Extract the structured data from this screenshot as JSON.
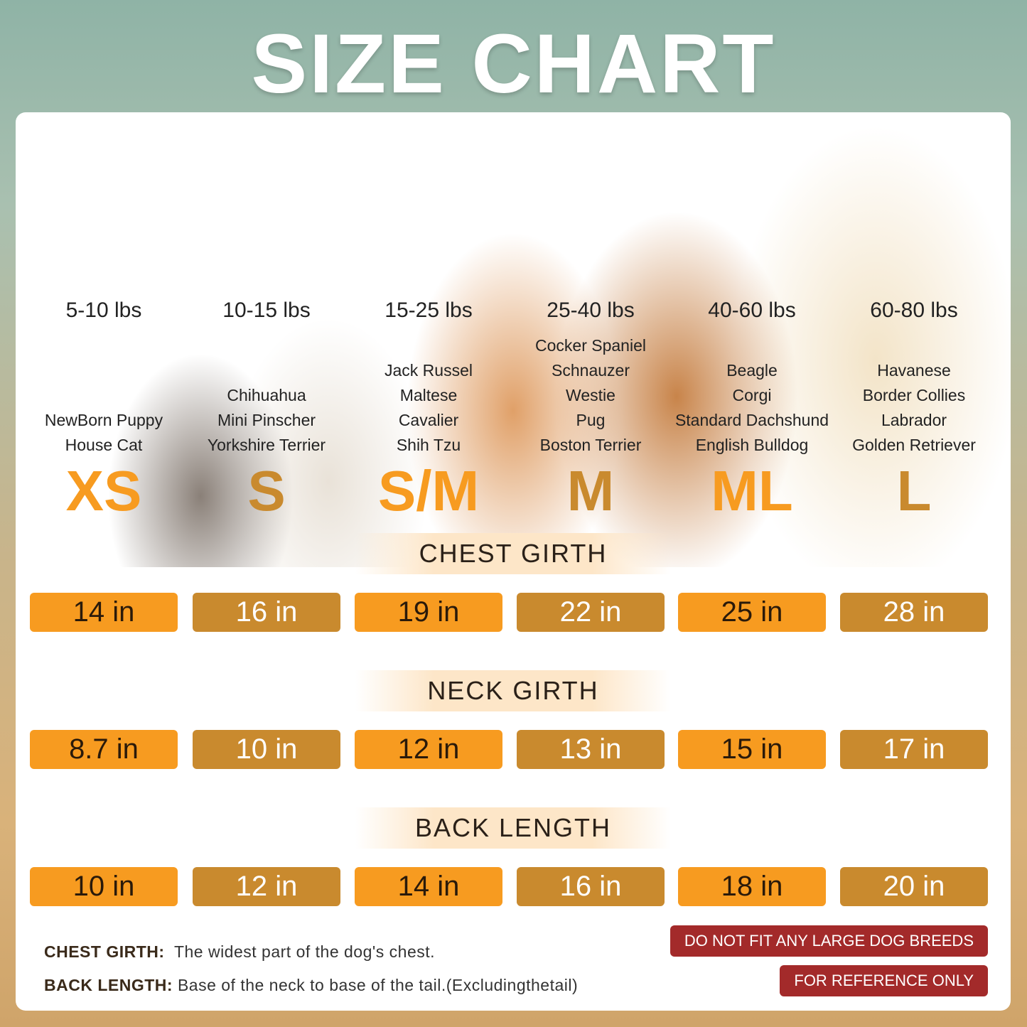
{
  "title": "SIZE CHART",
  "colors": {
    "orange": "#f79b20",
    "brown": "#c98a2e",
    "warning": "#a32a2a"
  },
  "sizes": [
    {
      "label": "XS",
      "weight": "5-10 lbs",
      "breeds": [
        "NewBorn Puppy",
        "House Cat"
      ]
    },
    {
      "label": "S",
      "weight": "10-15 lbs",
      "breeds": [
        "Chihuahua",
        "Mini Pinscher",
        "Yorkshire Terrier"
      ]
    },
    {
      "label": "S/M",
      "weight": "15-25 lbs",
      "breeds": [
        "Jack Russel",
        "Maltese",
        "Cavalier",
        "Shih Tzu"
      ]
    },
    {
      "label": "M",
      "weight": "25-40 lbs",
      "breeds": [
        "Cocker Spaniel",
        "Schnauzer",
        "Westie",
        "Pug",
        "Boston Terrier"
      ]
    },
    {
      "label": "ML",
      "weight": "40-60 lbs",
      "breeds": [
        "Beagle",
        "Corgi",
        "Standard Dachshund",
        "English Bulldog"
      ]
    },
    {
      "label": "L",
      "weight": "60-80 lbs",
      "breeds": [
        "Havanese",
        "Border Collies",
        "Labrador",
        "Golden Retriever"
      ]
    }
  ],
  "measurements": [
    {
      "name": "CHEST GIRTH",
      "values": [
        "14 in",
        "16 in",
        "19 in",
        "22 in",
        "25 in",
        "28 in"
      ]
    },
    {
      "name": "NECK GIRTH",
      "values": [
        "8.7 in",
        "10 in",
        "12 in",
        "13 in",
        "15 in",
        "17 in"
      ]
    },
    {
      "name": "BACK LENGTH",
      "values": [
        "10 in",
        "12 in",
        "14 in",
        "16 in",
        "18 in",
        "20 in"
      ]
    }
  ],
  "notes": [
    {
      "term": "CHEST GIRTH:",
      "text": "The widest part of the dog's chest."
    },
    {
      "term": "BACK LENGTH:",
      "text": "Base of the neck to base of the tail.(Excludingthetail)"
    }
  ],
  "warnings": [
    "DO NOT FIT ANY LARGE DOG BREEDS",
    "FOR REFERENCE ONLY"
  ]
}
